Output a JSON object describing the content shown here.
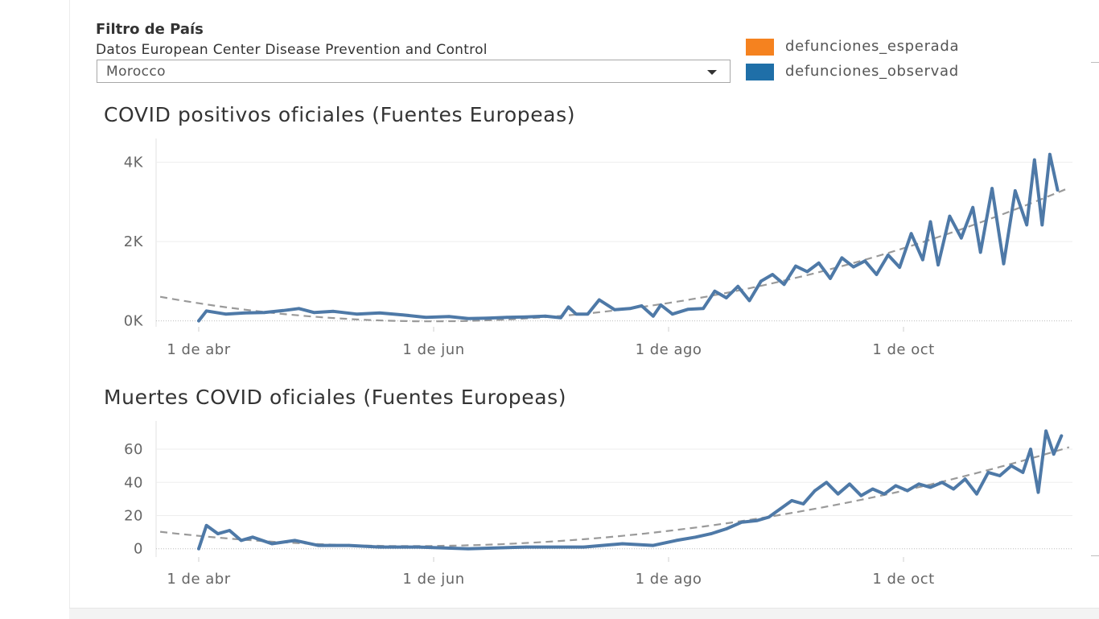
{
  "filter": {
    "title": "Filtro de País",
    "subtitle": "Datos European Center Disease Prevention and Control",
    "selected": "Morocco"
  },
  "legend": {
    "items": [
      {
        "label": "defunciones_esperada",
        "color": "#f5821f"
      },
      {
        "label": "defunciones_observad",
        "color": "#1f6fa8"
      }
    ]
  },
  "colors": {
    "series": "#4e79a7",
    "trend": "#9a9a9a",
    "grid": "#eeeeee"
  },
  "chart_data": [
    {
      "type": "line",
      "title": "COVID positivos oficiales (Fuentes Europeas)",
      "xlabel": "",
      "ylabel": "",
      "x_ticks": [
        "1 de abr",
        "1 de jun",
        "1 de ago",
        "1 de oct"
      ],
      "x_range": [
        "2020-03-20",
        "2020-11-12"
      ],
      "y_ticks": [
        "0K",
        "2K",
        "4K"
      ],
      "y_tick_values": [
        0,
        2000,
        4000
      ],
      "ylim": [
        -150,
        4600
      ],
      "grid": true,
      "trendline": true,
      "series": [
        {
          "points": [
            [
              "2020-04-01",
              0
            ],
            [
              "2020-04-03",
              250
            ],
            [
              "2020-04-08",
              170
            ],
            [
              "2020-04-13",
              200
            ],
            [
              "2020-04-18",
              210
            ],
            [
              "2020-04-23",
              260
            ],
            [
              "2020-04-27",
              310
            ],
            [
              "2020-05-01",
              210
            ],
            [
              "2020-05-06",
              240
            ],
            [
              "2020-05-12",
              170
            ],
            [
              "2020-05-18",
              200
            ],
            [
              "2020-05-24",
              150
            ],
            [
              "2020-05-30",
              90
            ],
            [
              "2020-06-05",
              110
            ],
            [
              "2020-06-10",
              60
            ],
            [
              "2020-06-15",
              70
            ],
            [
              "2020-06-20",
              90
            ],
            [
              "2020-06-25",
              100
            ],
            [
              "2020-06-30",
              120
            ],
            [
              "2020-07-04",
              80
            ],
            [
              "2020-07-06",
              350
            ],
            [
              "2020-07-08",
              170
            ],
            [
              "2020-07-11",
              170
            ],
            [
              "2020-07-14",
              530
            ],
            [
              "2020-07-18",
              280
            ],
            [
              "2020-07-22",
              310
            ],
            [
              "2020-07-25",
              380
            ],
            [
              "2020-07-28",
              120
            ],
            [
              "2020-07-30",
              400
            ],
            [
              "2020-08-02",
              170
            ],
            [
              "2020-08-06",
              290
            ],
            [
              "2020-08-10",
              310
            ],
            [
              "2020-08-13",
              750
            ],
            [
              "2020-08-16",
              580
            ],
            [
              "2020-08-19",
              870
            ],
            [
              "2020-08-22",
              510
            ],
            [
              "2020-08-25",
              1000
            ],
            [
              "2020-08-28",
              1170
            ],
            [
              "2020-08-31",
              920
            ],
            [
              "2020-09-03",
              1380
            ],
            [
              "2020-09-06",
              1240
            ],
            [
              "2020-09-09",
              1460
            ],
            [
              "2020-09-12",
              1070
            ],
            [
              "2020-09-15",
              1590
            ],
            [
              "2020-09-18",
              1360
            ],
            [
              "2020-09-21",
              1510
            ],
            [
              "2020-09-24",
              1170
            ],
            [
              "2020-09-27",
              1660
            ],
            [
              "2020-09-30",
              1350
            ],
            [
              "2020-10-03",
              2200
            ],
            [
              "2020-10-06",
              1540
            ],
            [
              "2020-10-08",
              2500
            ],
            [
              "2020-10-10",
              1410
            ],
            [
              "2020-10-13",
              2640
            ],
            [
              "2020-10-16",
              2090
            ],
            [
              "2020-10-19",
              2860
            ],
            [
              "2020-10-21",
              1730
            ],
            [
              "2020-10-24",
              3340
            ],
            [
              "2020-10-27",
              1440
            ],
            [
              "2020-10-30",
              3280
            ],
            [
              "2020-11-02",
              2420
            ],
            [
              "2020-11-04",
              4060
            ],
            [
              "2020-11-06",
              2420
            ],
            [
              "2020-11-08",
              4200
            ],
            [
              "2020-11-10",
              3300
            ]
          ]
        }
      ]
    },
    {
      "type": "line",
      "title": "Muertes COVID oficiales (Fuentes Europeas)",
      "xlabel": "",
      "ylabel": "",
      "x_ticks": [
        "1 de abr",
        "1 de jun",
        "1 de ago",
        "1 de oct"
      ],
      "x_range": [
        "2020-03-20",
        "2020-11-12"
      ],
      "y_ticks": [
        "0",
        "20",
        "40",
        "60"
      ],
      "y_tick_values": [
        0,
        20,
        40,
        60
      ],
      "ylim": [
        -5,
        77
      ],
      "grid": true,
      "trendline": true,
      "series": [
        {
          "points": [
            [
              "2020-04-01",
              0
            ],
            [
              "2020-04-03",
              14
            ],
            [
              "2020-04-06",
              9
            ],
            [
              "2020-04-09",
              11
            ],
            [
              "2020-04-12",
              5
            ],
            [
              "2020-04-15",
              7
            ],
            [
              "2020-04-20",
              3
            ],
            [
              "2020-04-26",
              5
            ],
            [
              "2020-05-02",
              2
            ],
            [
              "2020-05-10",
              2
            ],
            [
              "2020-05-18",
              1
            ],
            [
              "2020-05-28",
              1
            ],
            [
              "2020-06-10",
              0
            ],
            [
              "2020-06-25",
              1
            ],
            [
              "2020-07-10",
              1
            ],
            [
              "2020-07-20",
              3
            ],
            [
              "2020-07-28",
              2
            ],
            [
              "2020-08-03",
              5
            ],
            [
              "2020-08-08",
              7
            ],
            [
              "2020-08-12",
              9
            ],
            [
              "2020-08-16",
              12
            ],
            [
              "2020-08-20",
              16
            ],
            [
              "2020-08-24",
              17
            ],
            [
              "2020-08-27",
              19
            ],
            [
              "2020-08-30",
              24
            ],
            [
              "2020-09-02",
              29
            ],
            [
              "2020-09-05",
              27
            ],
            [
              "2020-09-08",
              35
            ],
            [
              "2020-09-11",
              40
            ],
            [
              "2020-09-14",
              33
            ],
            [
              "2020-09-17",
              39
            ],
            [
              "2020-09-20",
              32
            ],
            [
              "2020-09-23",
              36
            ],
            [
              "2020-09-26",
              33
            ],
            [
              "2020-09-29",
              38
            ],
            [
              "2020-10-02",
              35
            ],
            [
              "2020-10-05",
              39
            ],
            [
              "2020-10-08",
              37
            ],
            [
              "2020-10-11",
              40
            ],
            [
              "2020-10-14",
              36
            ],
            [
              "2020-10-17",
              42
            ],
            [
              "2020-10-20",
              33
            ],
            [
              "2020-10-23",
              46
            ],
            [
              "2020-10-26",
              44
            ],
            [
              "2020-10-29",
              50
            ],
            [
              "2020-11-01",
              46
            ],
            [
              "2020-11-03",
              60
            ],
            [
              "2020-11-05",
              34
            ],
            [
              "2020-11-07",
              71
            ],
            [
              "2020-11-09",
              57
            ],
            [
              "2020-11-11",
              68
            ]
          ]
        }
      ]
    }
  ]
}
